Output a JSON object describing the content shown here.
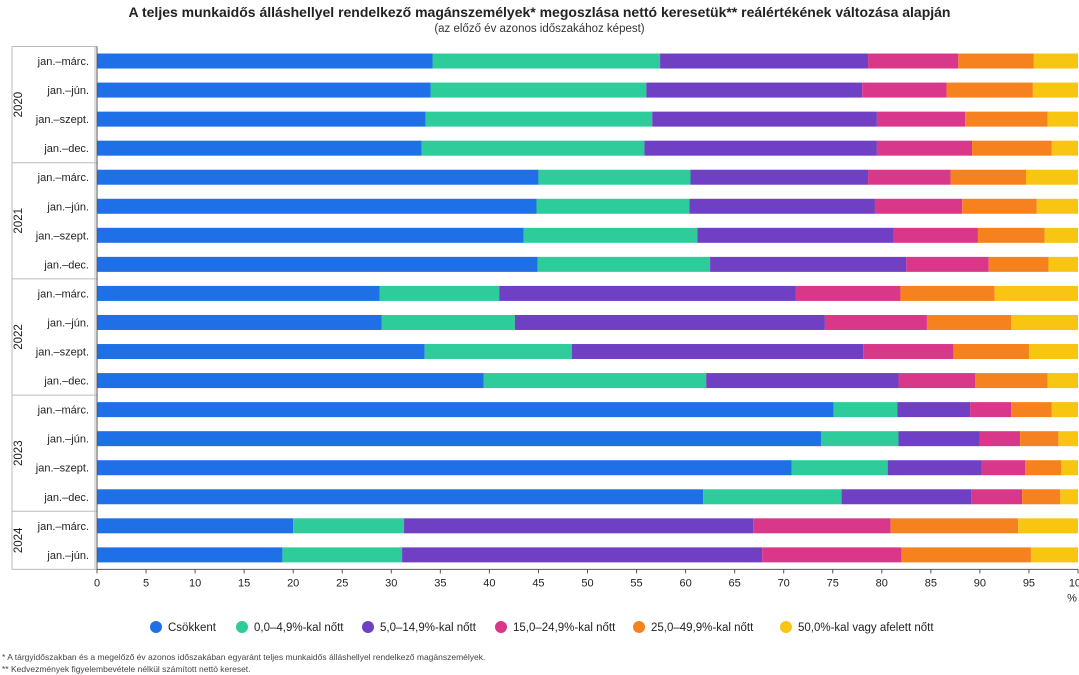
{
  "chart_data": {
    "type": "bar",
    "orientation": "horizontal",
    "stacked": true,
    "title": "A teljes munkaidős álláshellyel rendelkező magánszemélyek* megoszlása nettó keresetük** reálértékének változása alapján",
    "subtitle": "(az előző év azonos időszakához képest)",
    "xlabel": "%",
    "xlim": [
      0,
      100
    ],
    "xticks": [
      0,
      5,
      10,
      15,
      20,
      25,
      30,
      35,
      40,
      45,
      50,
      55,
      60,
      65,
      70,
      75,
      80,
      85,
      90,
      95,
      100
    ],
    "grid": false,
    "legend_position": "bottom",
    "groups": [
      {
        "label": "2020",
        "count": 4
      },
      {
        "label": "2021",
        "count": 4
      },
      {
        "label": "2022",
        "count": 4
      },
      {
        "label": "2023",
        "count": 4
      },
      {
        "label": "2024",
        "count": 2
      }
    ],
    "categories": [
      "jan.–márc.",
      "jan.–jún.",
      "jan.–szept.",
      "jan.–dec.",
      "jan.–márc.",
      "jan.–jún.",
      "jan.–szept.",
      "jan.–dec.",
      "jan.–márc.",
      "jan.–jún.",
      "jan.–szept.",
      "jan.–dec.",
      "jan.–márc.",
      "jan.–jún.",
      "jan.–szept.",
      "jan.–dec.",
      "jan.–márc.",
      "jan.–jún."
    ],
    "series": [
      {
        "name": "Csökkent",
        "color": "#1f6fe6",
        "values": [
          34.2,
          34.0,
          33.5,
          33.1,
          45.0,
          44.8,
          43.5,
          44.9,
          28.8,
          29.0,
          33.4,
          39.4,
          75.1,
          73.8,
          70.8,
          61.8,
          20.0,
          18.9
        ]
      },
      {
        "name": "0,0–4,9%-kal nőtt",
        "color": "#2ecc9a",
        "values": [
          23.2,
          22.0,
          23.1,
          22.7,
          15.5,
          15.6,
          17.7,
          17.6,
          12.2,
          13.6,
          15.0,
          22.7,
          6.5,
          7.9,
          9.8,
          14.1,
          11.3,
          12.2
        ]
      },
      {
        "name": "5,0–14,9%-kal nőtt",
        "color": "#6f3fc4",
        "values": [
          21.2,
          22.0,
          22.9,
          23.7,
          18.1,
          18.9,
          20.0,
          20.0,
          30.2,
          31.6,
          29.7,
          19.6,
          7.4,
          8.3,
          9.6,
          13.2,
          35.6,
          36.7
        ]
      },
      {
        "name": "15,0–24,9%-kal nőtt",
        "color": "#d9378a",
        "values": [
          9.2,
          8.6,
          9.0,
          9.7,
          8.4,
          8.9,
          8.6,
          8.4,
          10.7,
          10.4,
          9.2,
          7.8,
          4.2,
          4.1,
          4.4,
          5.2,
          14.0,
          14.2
        ]
      },
      {
        "name": "25,0–49,9%-kal nőtt",
        "color": "#f5821f",
        "values": [
          7.7,
          8.8,
          8.4,
          8.1,
          7.7,
          7.6,
          6.8,
          6.1,
          9.6,
          8.6,
          7.7,
          7.4,
          4.1,
          3.9,
          3.7,
          3.9,
          13.0,
          13.2
        ]
      },
      {
        "name": "50,0%-kal vagy afelett nőtt",
        "color": "#f9c513",
        "values": [
          4.5,
          4.6,
          3.1,
          2.7,
          5.3,
          4.2,
          3.4,
          3.0,
          8.5,
          6.8,
          5.0,
          3.1,
          2.7,
          2.0,
          1.7,
          1.8,
          6.1,
          4.8
        ]
      }
    ]
  },
  "footnotes": [
    "* A tárgyidőszakban és a megelőző év azonos időszakában egyaránt teljes munkaidős álláshellyel rendelkező magánszemélyek.",
    "** Kedvezmények figyelembevétele nélkül számított nettó kereset."
  ]
}
